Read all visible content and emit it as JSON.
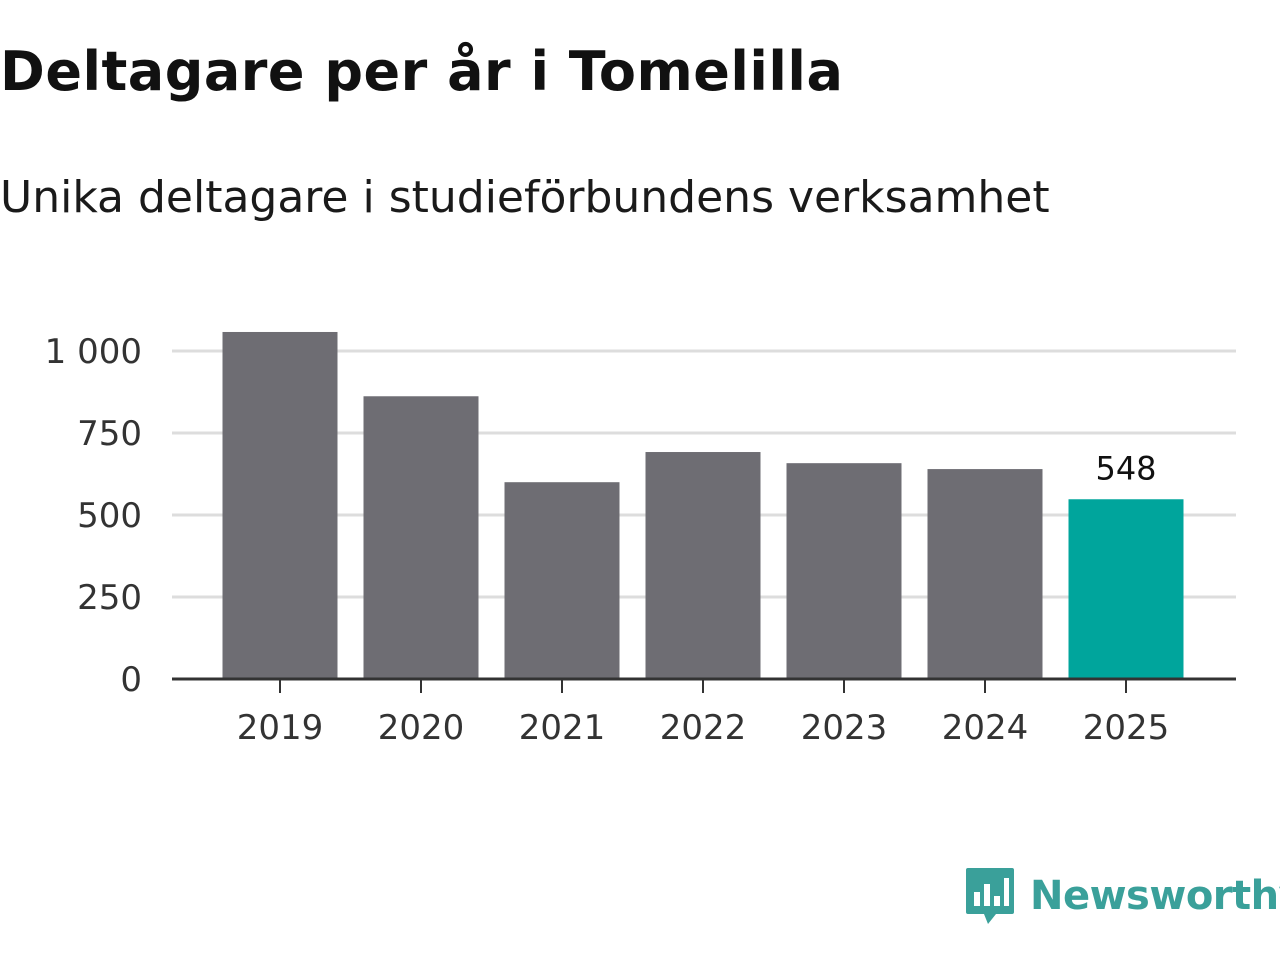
{
  "chart_data": {
    "type": "bar",
    "title": "Deltagare per år i Tomelilla",
    "subtitle": "Unika deltagare i studieförbundens verksamhet",
    "xlabel": "",
    "ylabel": "",
    "categories": [
      "2019",
      "2020",
      "2021",
      "2022",
      "2023",
      "2024",
      "2025"
    ],
    "values": [
      1058,
      862,
      600,
      692,
      658,
      640,
      548
    ],
    "highlight_index": 6,
    "highlight_label": "548",
    "ylim": [
      0,
      1060
    ],
    "yticks": [
      0,
      250,
      500,
      750,
      1000
    ],
    "ytick_labels": [
      "0",
      "250",
      "500",
      "750",
      "1 000"
    ],
    "grid": true,
    "colors": {
      "bar": "#6e6d73",
      "highlight": "#00a59c",
      "grid": "#dddddd",
      "axis": "#333333"
    }
  },
  "brand": {
    "name": "Newsworthy",
    "color": "#3aa09a",
    "icon": "newsworthy-logo-icon"
  }
}
